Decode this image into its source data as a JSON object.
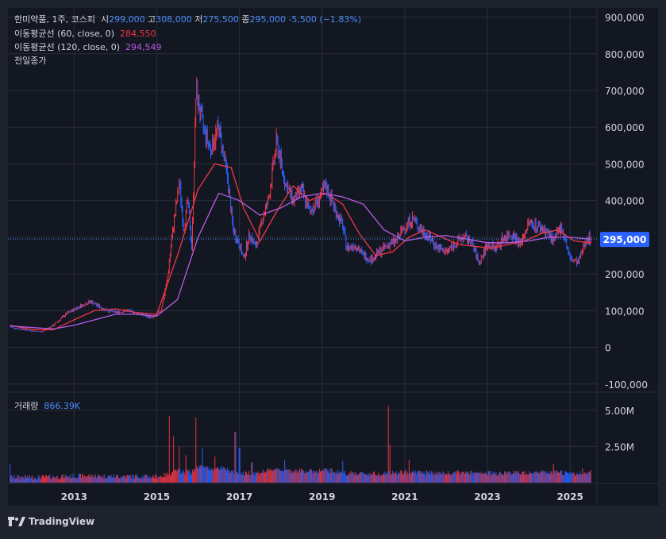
{
  "legend": {
    "symbol": "한미약품, 1주, 코스피",
    "open_label": "시",
    "open": "299,000",
    "high_label": "고",
    "high": "308,000",
    "low_label": "저",
    "low": "275,500",
    "close_label": "종",
    "close": "295,000",
    "change": "-5,500 (−1.83%)",
    "ma60_label": "이동평균선 (60, close, 0)",
    "ma60_value": "284,550",
    "ma120_label": "이동평균선 (120, close, 0)",
    "ma120_value": "294,549",
    "prev_close_label": "전일종가",
    "volume_label": "거래량",
    "volume_value": "866.39K"
  },
  "colors": {
    "background": "#131722",
    "panel": "#1e222d",
    "grid": "#2a2e39",
    "up": "#f23645",
    "down": "#2962ff",
    "ma60": "#f23645",
    "ma120": "#b95ce6",
    "price_tag": "#2962ff",
    "text": "#d1d4dc",
    "accent_blue": "#4a8cf7"
  },
  "price_tag": "295,000",
  "footer": {
    "brand": "TradingView",
    "icon": "tradingview-logo-icon"
  },
  "chart_data": [
    {
      "type": "line",
      "title": "한미약품, 1주, 코스피",
      "xlabel": "",
      "ylabel": "",
      "x_ticks": [
        "2013",
        "2015",
        "2017",
        "2019",
        "2021",
        "2023",
        "2025"
      ],
      "x_tick_years": [
        2013,
        2015,
        2017,
        2019,
        2021,
        2023,
        2025
      ],
      "xlim": [
        2011.4,
        2025.65
      ],
      "y_ticks": [
        "900,000",
        "800,000",
        "700,000",
        "600,000",
        "500,000",
        "400,000",
        "300,000",
        "200,000",
        "100,000",
        "0",
        "-100,000"
      ],
      "y_tick_values": [
        900000,
        800000,
        700000,
        600000,
        500000,
        400000,
        300000,
        200000,
        100000,
        0,
        -100000
      ],
      "ylim": [
        -120000,
        925000
      ],
      "last_price": 295000,
      "series": [
        {
          "name": "한미약품 (weekly close)",
          "points": [
            [
              2011.45,
              55000
            ],
            [
              2011.8,
              48000
            ],
            [
              2012.2,
              42000
            ],
            [
              2012.5,
              60000
            ],
            [
              2012.8,
              90000
            ],
            [
              2013.1,
              110000
            ],
            [
              2013.4,
              125000
            ],
            [
              2013.7,
              105000
            ],
            [
              2014.0,
              95000
            ],
            [
              2014.3,
              100000
            ],
            [
              2014.6,
              90000
            ],
            [
              2014.9,
              80000
            ],
            [
              2015.1,
              100000
            ],
            [
              2015.25,
              180000
            ],
            [
              2015.4,
              330000
            ],
            [
              2015.55,
              450000
            ],
            [
              2015.65,
              320000
            ],
            [
              2015.75,
              400000
            ],
            [
              2015.85,
              270000
            ],
            [
              2015.95,
              700000
            ],
            [
              2016.1,
              610000
            ],
            [
              2016.3,
              540000
            ],
            [
              2016.5,
              600000
            ],
            [
              2016.7,
              470000
            ],
            [
              2016.85,
              320000
            ],
            [
              2017.0,
              280000
            ],
            [
              2017.1,
              240000
            ],
            [
              2017.25,
              310000
            ],
            [
              2017.4,
              270000
            ],
            [
              2017.55,
              350000
            ],
            [
              2017.7,
              400000
            ],
            [
              2017.9,
              560000
            ],
            [
              2018.1,
              450000
            ],
            [
              2018.3,
              400000
            ],
            [
              2018.5,
              430000
            ],
            [
              2018.7,
              370000
            ],
            [
              2018.9,
              400000
            ],
            [
              2019.1,
              440000
            ],
            [
              2019.3,
              380000
            ],
            [
              2019.5,
              330000
            ],
            [
              2019.6,
              270000
            ],
            [
              2019.8,
              280000
            ],
            [
              2020.0,
              250000
            ],
            [
              2020.2,
              240000
            ],
            [
              2020.4,
              260000
            ],
            [
              2020.6,
              280000
            ],
            [
              2020.8,
              290000
            ],
            [
              2021.0,
              330000
            ],
            [
              2021.2,
              350000
            ],
            [
              2021.4,
              320000
            ],
            [
              2021.6,
              300000
            ],
            [
              2021.8,
              270000
            ],
            [
              2022.0,
              260000
            ],
            [
              2022.2,
              280000
            ],
            [
              2022.4,
              300000
            ],
            [
              2022.6,
              290000
            ],
            [
              2022.8,
              230000
            ],
            [
              2023.0,
              280000
            ],
            [
              2023.2,
              270000
            ],
            [
              2023.4,
              300000
            ],
            [
              2023.6,
              310000
            ],
            [
              2023.8,
              280000
            ],
            [
              2024.0,
              340000
            ],
            [
              2024.2,
              330000
            ],
            [
              2024.4,
              320000
            ],
            [
              2024.6,
              290000
            ],
            [
              2024.8,
              330000
            ],
            [
              2025.0,
              240000
            ],
            [
              2025.2,
              230000
            ],
            [
              2025.4,
              300000
            ],
            [
              2025.5,
              295000
            ]
          ]
        },
        {
          "name": "이동평균선 (60, close, 0)",
          "points": [
            [
              2011.45,
              60000
            ],
            [
              2012.0,
              48000
            ],
            [
              2012.5,
              48000
            ],
            [
              2013.0,
              75000
            ],
            [
              2013.5,
              100000
            ],
            [
              2014.0,
              105000
            ],
            [
              2014.5,
              95000
            ],
            [
              2015.0,
              90000
            ],
            [
              2015.5,
              250000
            ],
            [
              2016.0,
              430000
            ],
            [
              2016.4,
              500000
            ],
            [
              2016.8,
              490000
            ],
            [
              2017.1,
              380000
            ],
            [
              2017.5,
              290000
            ],
            [
              2017.9,
              370000
            ],
            [
              2018.3,
              440000
            ],
            [
              2018.7,
              400000
            ],
            [
              2019.1,
              420000
            ],
            [
              2019.5,
              390000
            ],
            [
              2019.9,
              310000
            ],
            [
              2020.3,
              250000
            ],
            [
              2020.7,
              260000
            ],
            [
              2021.1,
              300000
            ],
            [
              2021.5,
              320000
            ],
            [
              2021.9,
              300000
            ],
            [
              2022.3,
              280000
            ],
            [
              2022.7,
              275000
            ],
            [
              2023.1,
              270000
            ],
            [
              2023.5,
              280000
            ],
            [
              2023.9,
              290000
            ],
            [
              2024.3,
              310000
            ],
            [
              2024.7,
              320000
            ],
            [
              2025.1,
              290000
            ],
            [
              2025.5,
              284550
            ]
          ]
        },
        {
          "name": "이동평균선 (120, close, 0)",
          "points": [
            [
              2011.45,
              58000
            ],
            [
              2012.5,
              50000
            ],
            [
              2013.0,
              60000
            ],
            [
              2013.5,
              75000
            ],
            [
              2014.0,
              90000
            ],
            [
              2014.5,
              90000
            ],
            [
              2015.0,
              85000
            ],
            [
              2015.5,
              130000
            ],
            [
              2016.0,
              300000
            ],
            [
              2016.5,
              420000
            ],
            [
              2017.0,
              400000
            ],
            [
              2017.5,
              360000
            ],
            [
              2018.0,
              380000
            ],
            [
              2018.5,
              410000
            ],
            [
              2019.0,
              420000
            ],
            [
              2019.5,
              410000
            ],
            [
              2020.0,
              390000
            ],
            [
              2020.5,
              320000
            ],
            [
              2021.0,
              290000
            ],
            [
              2021.5,
              300000
            ],
            [
              2022.0,
              305000
            ],
            [
              2022.5,
              295000
            ],
            [
              2023.0,
              285000
            ],
            [
              2023.5,
              285000
            ],
            [
              2024.0,
              290000
            ],
            [
              2024.5,
              300000
            ],
            [
              2025.0,
              300000
            ],
            [
              2025.5,
              294549
            ]
          ]
        }
      ]
    },
    {
      "type": "bar",
      "title": "거래량",
      "y_ticks": [
        "5.00M",
        "2.50M"
      ],
      "y_tick_values": [
        5000000,
        2500000
      ],
      "ylim": [
        0,
        6200000
      ],
      "last_value": "866.39K",
      "spikes": [
        [
          2011.45,
          1300000
        ],
        [
          2015.3,
          4600000
        ],
        [
          2015.4,
          3200000
        ],
        [
          2015.55,
          2500000
        ],
        [
          2015.7,
          1900000
        ],
        [
          2015.95,
          4500000
        ],
        [
          2016.1,
          2400000
        ],
        [
          2016.4,
          1800000
        ],
        [
          2016.9,
          3500000
        ],
        [
          2017.0,
          2400000
        ],
        [
          2017.3,
          1400000
        ],
        [
          2018.1,
          1600000
        ],
        [
          2019.5,
          1500000
        ],
        [
          2020.6,
          5300000
        ],
        [
          2020.65,
          2600000
        ],
        [
          2021.1,
          1600000
        ],
        [
          2024.6,
          1300000
        ],
        [
          2025.3,
          1000000
        ],
        [
          2025.5,
          866390
        ]
      ]
    }
  ]
}
